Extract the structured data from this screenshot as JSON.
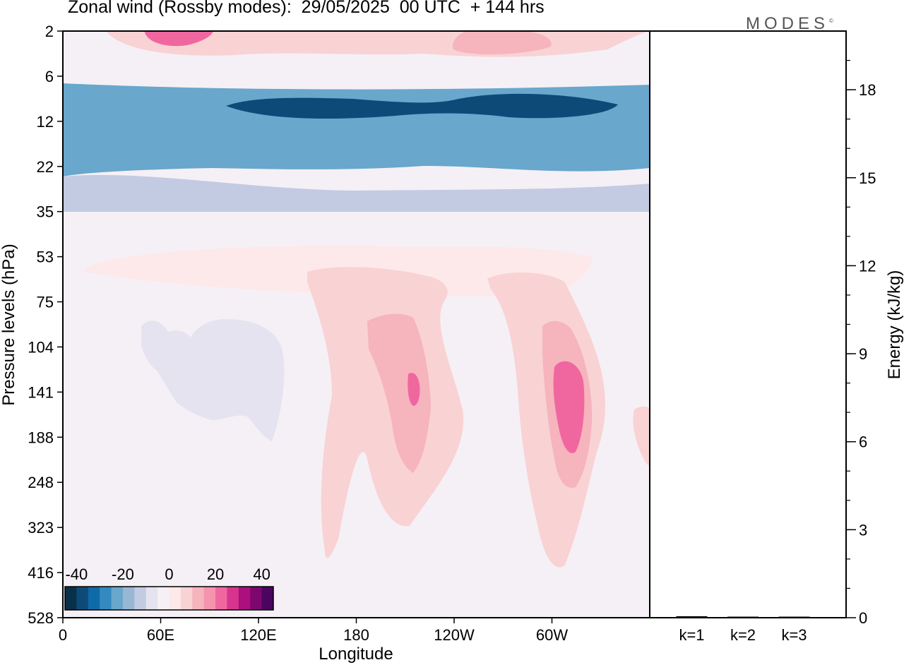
{
  "header": {
    "title": "Zonal wind (Rossby modes):  29/05/2025  00 UTC  + 144 hrs",
    "brand": "MODES",
    "brand_mark": "©"
  },
  "chart_data": [
    {
      "type": "heatmap",
      "title": "Zonal wind (Rossby modes):  29/05/2025  00 UTC  + 144 hrs",
      "xlabel": "Longitude",
      "ylabel": "Pressure levels (hPa)",
      "x_ticks": [
        "0",
        "60E",
        "120E",
        "180",
        "120W",
        "60W"
      ],
      "y_ticks": [
        "2",
        "6",
        "12",
        "22",
        "35",
        "53",
        "75",
        "104",
        "141",
        "188",
        "248",
        "323",
        "416",
        "528"
      ],
      "xlim": [
        0,
        360
      ],
      "colorbar": {
        "labels": [
          "-40",
          "-20",
          "0",
          "20",
          "40"
        ],
        "range": [
          -45,
          45
        ],
        "colors": [
          "#08304a",
          "#0d4a78",
          "#0f6aa8",
          "#3489c0",
          "#69a7cc",
          "#97b7d5",
          "#c2cbe2",
          "#e4e3ef",
          "#f5f0f6",
          "#fde9e9",
          "#f9d2d4",
          "#f6b4bd",
          "#f594ae",
          "#f067a0",
          "#d8348e",
          "#ac0f7e",
          "#7d076e",
          "#4c0461"
        ]
      },
      "contour_regions": [
        {
          "value": 7,
          "level": "2-3",
          "lon": [
            45,
            300
          ],
          "desc": "upper weak positive band"
        },
        {
          "value": 22,
          "level": "2-3",
          "lon": [
            55,
            85
          ]
        },
        {
          "value": 14,
          "level": "2-3",
          "lon": [
            240,
            280
          ]
        },
        {
          "value": -5,
          "level": "5-7",
          "lon": [
            0,
            360
          ]
        },
        {
          "value": -22,
          "level": "7-22",
          "lon": [
            0,
            360
          ]
        },
        {
          "value": -37,
          "level": "9-12",
          "lon": [
            100,
            340
          ]
        },
        {
          "value": -12,
          "level": "22-35",
          "lon": [
            0,
            360
          ]
        },
        {
          "value": -3,
          "level": "35-53",
          "lon": [
            0,
            360
          ]
        },
        {
          "value": 3,
          "level": "53-75",
          "lon": [
            15,
            310
          ]
        },
        {
          "value": -4,
          "level": "75-420",
          "lon": [
            0,
            145
          ]
        },
        {
          "value": -8,
          "level": "104-200",
          "lon": [
            50,
            135
          ]
        },
        {
          "value": 7,
          "level": "60-420",
          "lon": [
            150,
            240
          ]
        },
        {
          "value": 14,
          "level": "95-270",
          "lon": [
            185,
            225
          ]
        },
        {
          "value": 22,
          "level": "130-150",
          "lon": [
            215,
            220
          ]
        },
        {
          "value": 7,
          "level": "60-420",
          "lon": [
            255,
            325
          ]
        },
        {
          "value": 14,
          "level": "95-270",
          "lon": [
            290,
            325
          ]
        },
        {
          "value": 22,
          "level": "115-190",
          "lon": [
            300,
            320
          ]
        },
        {
          "value": 5,
          "level": "150-230",
          "lon": [
            350,
            360
          ]
        },
        {
          "value": -4,
          "level": "300-528",
          "lon": [
            335,
            350
          ]
        }
      ]
    },
    {
      "type": "bar",
      "categories": [
        "k=1",
        "k=2",
        "k=3"
      ],
      "values": [
        0.05,
        0.03,
        0.03
      ],
      "ylabel": "Energy (kJ/kg)",
      "ylim": [
        0,
        20
      ],
      "y_ticks": [
        "0",
        "3",
        "6",
        "9",
        "12",
        "15",
        "18"
      ]
    }
  ]
}
